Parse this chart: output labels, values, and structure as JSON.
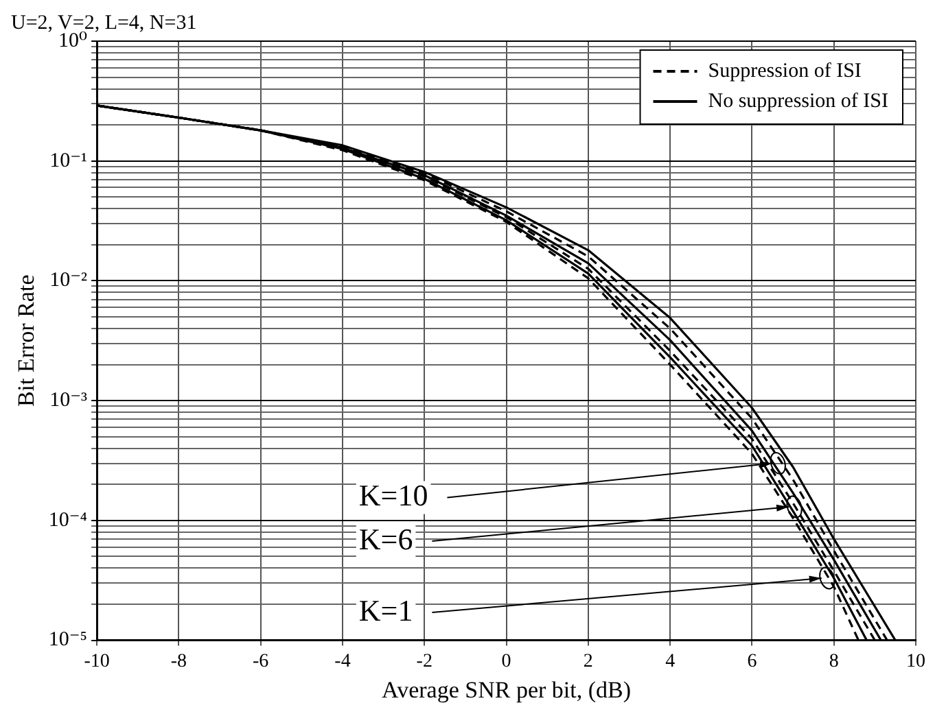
{
  "chart_data": {
    "type": "line",
    "title": "U=2, V=2, L=4, N=31",
    "xlabel": "Average SNR per bit, (dB)",
    "ylabel": "Bit Error Rate",
    "log": "y",
    "grid": true,
    "legend": "top right",
    "marker": "none",
    "xlim": [
      -10,
      10
    ],
    "xticks": [
      -10,
      -8,
      -6,
      -4,
      -2,
      0,
      2,
      4,
      6,
      8,
      10
    ],
    "ylim": [
      1e-05,
      1
    ],
    "yticks": [
      {
        "value": 1e-05,
        "label": "10⁻⁵"
      },
      {
        "value": 2e-05,
        "label": null
      },
      {
        "value": 3e-05,
        "label": null
      },
      {
        "value": 4e-05,
        "label": null
      },
      {
        "value": 5e-05,
        "label": null
      },
      {
        "value": 6e-05,
        "label": null
      },
      {
        "value": 7e-05,
        "label": null
      },
      {
        "value": 8e-05,
        "label": null
      },
      {
        "value": 9e-05,
        "label": null
      },
      {
        "value": 0.0001,
        "label": "10⁻⁴"
      },
      {
        "value": 0.0002,
        "label": null
      },
      {
        "value": 0.0003,
        "label": null
      },
      {
        "value": 0.0004,
        "label": null
      },
      {
        "value": 0.0005,
        "label": null
      },
      {
        "value": 0.0006,
        "label": null
      },
      {
        "value": 0.0007,
        "label": null
      },
      {
        "value": 0.0008,
        "label": null
      },
      {
        "value": 0.0009,
        "label": null
      },
      {
        "value": 0.001,
        "label": "10⁻³"
      },
      {
        "value": 0.002,
        "label": null
      },
      {
        "value": 0.003,
        "label": null
      },
      {
        "value": 0.004,
        "label": null
      },
      {
        "value": 0.005,
        "label": null
      },
      {
        "value": 0.006,
        "label": null
      },
      {
        "value": 0.007,
        "label": null
      },
      {
        "value": 0.008,
        "label": null
      },
      {
        "value": 0.009,
        "label": null
      },
      {
        "value": 0.01,
        "label": "10⁻²"
      },
      {
        "value": 0.02,
        "label": null
      },
      {
        "value": 0.03,
        "label": null
      },
      {
        "value": 0.04,
        "label": null
      },
      {
        "value": 0.05,
        "label": null
      },
      {
        "value": 0.06,
        "label": null
      },
      {
        "value": 0.07,
        "label": null
      },
      {
        "value": 0.08,
        "label": null
      },
      {
        "value": 0.09,
        "label": null
      },
      {
        "value": 0.1,
        "label": "10⁻¹"
      },
      {
        "value": 0.2,
        "label": null
      },
      {
        "value": 0.3,
        "label": null
      },
      {
        "value": 0.4,
        "label": null
      },
      {
        "value": 0.5,
        "label": null
      },
      {
        "value": 0.6,
        "label": null
      },
      {
        "value": 0.7,
        "label": null
      },
      {
        "value": 0.8,
        "label": null
      },
      {
        "value": 0.9,
        "label": null
      },
      {
        "value": 1,
        "label": "10⁰"
      }
    ],
    "series": [
      {
        "name": "Suppression of ISI",
        "color": "#000000",
        "line_style": "dashed",
        "x": [
          -10,
          -8,
          -6,
          -4,
          -2,
          0,
          2,
          4,
          6,
          7,
          8,
          9.3
        ],
        "values": [
          0.29,
          0.23,
          0.18,
          0.132,
          0.079,
          0.038,
          0.016,
          0.004,
          0.00071,
          0.00022,
          5.6e-05,
          1e-05
        ]
      },
      {
        "name": "No suppression of ISI",
        "color": "#000000",
        "line_style": "solid",
        "x": [
          -10,
          -8,
          -6,
          -4,
          -2,
          0,
          2,
          4,
          6,
          7,
          8,
          9.5
        ],
        "values": [
          0.29,
          0.23,
          0.18,
          0.135,
          0.081,
          0.041,
          0.018,
          0.0049,
          0.00087,
          0.00028,
          7e-05,
          1e-05
        ]
      },
      {
        "color": "#000000",
        "line_style": "dashed",
        "x": [
          -10,
          -8,
          -6,
          -4,
          -2,
          0,
          2,
          4,
          6,
          7,
          8,
          9.0
        ],
        "values": [
          0.29,
          0.23,
          0.18,
          0.129,
          0.074,
          0.034,
          0.0126,
          0.0026,
          0.00048,
          0.00014,
          3.8e-05,
          1e-05
        ]
      },
      {
        "color": "#000000",
        "line_style": "solid",
        "x": [
          -10,
          -8,
          -6,
          -4,
          -2,
          0,
          2,
          4,
          6,
          7,
          8,
          9.15
        ],
        "values": [
          0.29,
          0.23,
          0.18,
          0.129,
          0.076,
          0.035,
          0.014,
          0.0032,
          0.00056,
          0.00017,
          4.7e-05,
          1e-05
        ]
      },
      {
        "color": "#000000",
        "line_style": "dashed",
        "x": [
          -10,
          -8,
          -6,
          -4,
          -2,
          0,
          2,
          4,
          6,
          7,
          8,
          8.6
        ],
        "values": [
          0.29,
          0.23,
          0.18,
          0.123,
          0.069,
          0.031,
          0.0105,
          0.002,
          0.00036,
          0.000105,
          2.8e-05,
          1e-05
        ]
      },
      {
        "color": "#000000",
        "line_style": "solid",
        "x": [
          -10,
          -8,
          -6,
          -4,
          -2,
          0,
          2,
          4,
          6,
          7,
          8,
          8.8
        ],
        "values": [
          0.29,
          0.23,
          0.18,
          0.126,
          0.071,
          0.032,
          0.0115,
          0.0023,
          0.00042,
          0.00012,
          3.3e-05,
          1e-05
        ]
      }
    ],
    "annotations": [
      {
        "text": "K=10",
        "x": 6.5,
        "y": 0.0003
      },
      {
        "text": "K=6",
        "x": 6.9,
        "y": 0.00013
      },
      {
        "text": "K=1",
        "x": 7.7,
        "y": 3.3e-05
      }
    ]
  }
}
